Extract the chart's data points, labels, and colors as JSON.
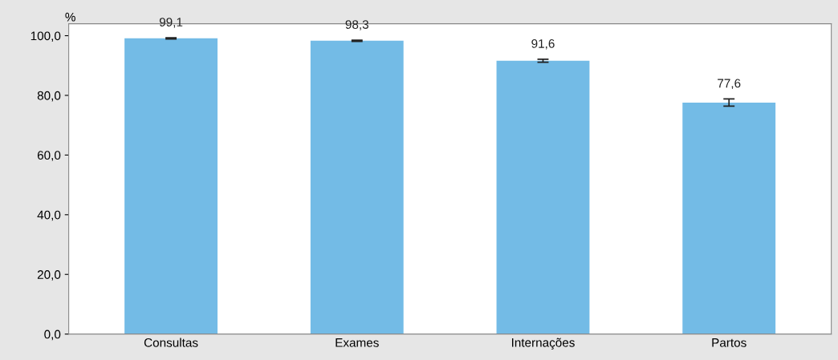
{
  "chart_data": {
    "type": "bar",
    "ylabel": "%",
    "categories": [
      "Consultas",
      "Exames",
      "Internações",
      "Partos"
    ],
    "values": [
      99.1,
      98.3,
      91.6,
      77.6
    ],
    "errors": [
      0.2,
      0.2,
      0.5,
      1.2
    ],
    "value_labels": [
      "99,1",
      "98,3",
      "91,6",
      "77,6"
    ],
    "color": "#73bbe6",
    "ylim": [
      0,
      104
    ],
    "yticks": [
      {
        "value": 0,
        "label": "0,0"
      },
      {
        "value": 20,
        "label": "20,0"
      },
      {
        "value": 40,
        "label": "40,0"
      },
      {
        "value": 60,
        "label": "60,0"
      },
      {
        "value": 80,
        "label": "80,0"
      },
      {
        "value": 100,
        "label": "100,0"
      }
    ],
    "grid": false
  }
}
